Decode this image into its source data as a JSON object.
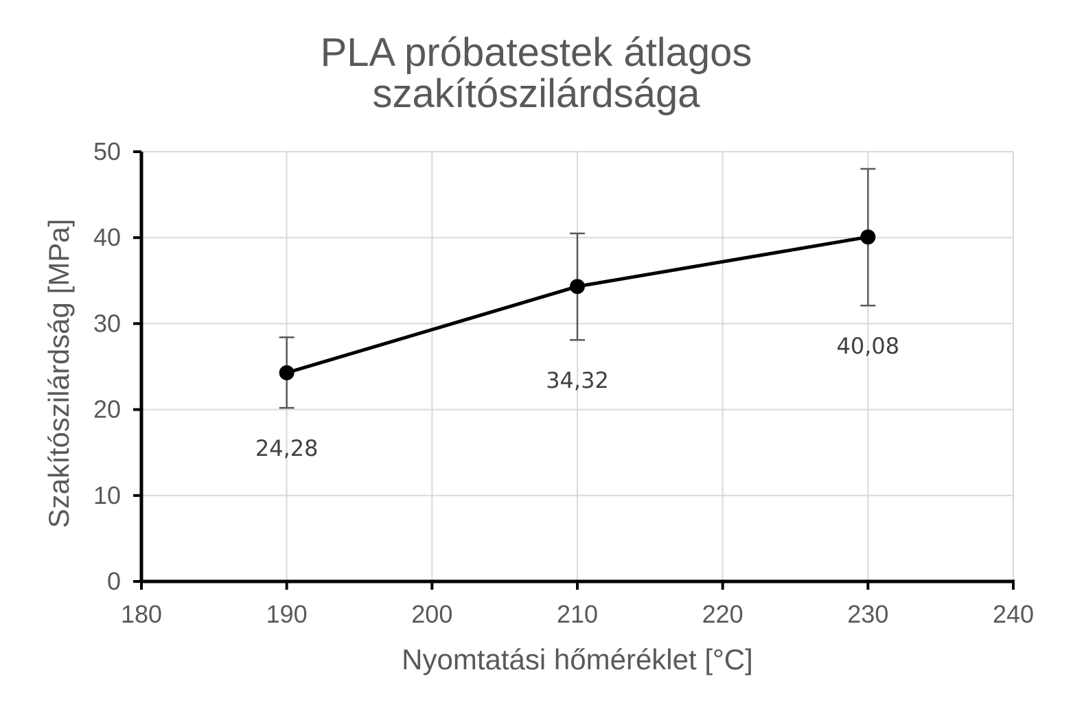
{
  "chart_data": {
    "type": "line",
    "title_lines": [
      "PLA próbatestek átlagos",
      "szakítószilárdsága"
    ],
    "xlabel": "Nyomtatási hőméréklet [°C]",
    "ylabel": "Szakítószilárdság [MPa]",
    "xlim": [
      180,
      240
    ],
    "ylim": [
      0,
      50
    ],
    "xticks": [
      180,
      190,
      200,
      210,
      220,
      230,
      240
    ],
    "yticks": [
      0,
      10,
      20,
      30,
      40,
      50
    ],
    "grid": true,
    "legend": "none",
    "series": [
      {
        "color": "#000000",
        "x": [
          190,
          210,
          230
        ],
        "y": [
          24.28,
          34.32,
          40.08
        ],
        "error_low": [
          20.2,
          28.1,
          32.1
        ],
        "error_high": [
          28.4,
          40.5,
          48.0
        ],
        "data_labels": [
          "24,28",
          "34,32",
          "40,08"
        ]
      }
    ]
  }
}
